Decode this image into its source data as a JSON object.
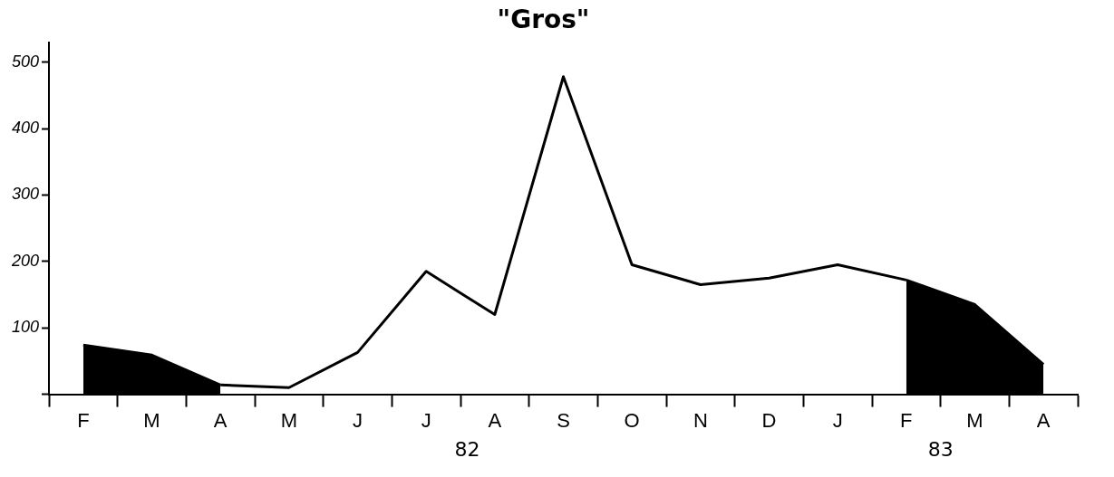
{
  "chart_data": {
    "type": "line",
    "title": "\"Gros\"",
    "categories": [
      "F",
      "M",
      "A",
      "M",
      "J",
      "J",
      "A",
      "S",
      "O",
      "N",
      "D",
      "J",
      "F",
      "M",
      "A"
    ],
    "series": [
      {
        "color": "#000000",
        "values": [
          null,
          null,
          14,
          10,
          63,
          185,
          120,
          478,
          195,
          165,
          175,
          195,
          172,
          null,
          null
        ]
      },
      {
        "type": "area",
        "color": "#000000",
        "values": [
          74,
          59,
          14,
          null,
          null,
          null,
          null,
          null,
          null,
          null,
          null,
          null,
          null,
          null,
          null
        ]
      },
      {
        "type": "area",
        "color": "#000000",
        "values": [
          null,
          null,
          null,
          null,
          null,
          null,
          null,
          null,
          null,
          null,
          null,
          null,
          172,
          135,
          45
        ]
      }
    ],
    "annotations": [
      "82",
      "83"
    ],
    "ylim": [
      0,
      530
    ],
    "yticks": [
      {
        "value": 0,
        "label": null
      },
      100,
      200,
      300,
      400,
      500
    ],
    "grid": false,
    "legend": false,
    "marker": "none",
    "line_style": "solid"
  }
}
